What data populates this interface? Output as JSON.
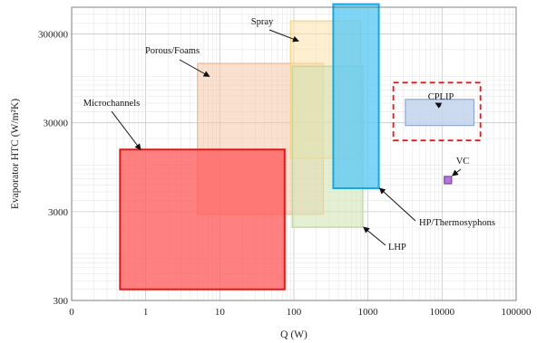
{
  "chart_data": {
    "type": "area",
    "xlabel": "Q (W)",
    "ylabel": "Evaporator HTC (W/m²K)",
    "x_scale": "log",
    "y_scale": "log",
    "xlim": [
      0.1,
      100000
    ],
    "ylim": [
      300,
      600000
    ],
    "x_ticks": [
      {
        "value": 0.1,
        "label": "0"
      },
      {
        "value": 1,
        "label": "1"
      },
      {
        "value": 10,
        "label": "10"
      },
      {
        "value": 100,
        "label": "100"
      },
      {
        "value": 1000,
        "label": "1000"
      },
      {
        "value": 10000,
        "label": "10000"
      },
      {
        "value": 100000,
        "label": "100000"
      }
    ],
    "y_ticks": [
      {
        "value": 300,
        "label": "300"
      },
      {
        "value": 3000,
        "label": "3000"
      },
      {
        "value": 30000,
        "label": "30000"
      },
      {
        "value": 300000,
        "label": "300000"
      }
    ],
    "grid": true,
    "regions": [
      {
        "name": "Porous/Foams",
        "q_range": [
          5,
          250
        ],
        "htc_range": [
          2800,
          140000
        ],
        "fill": "#f5c6a6",
        "stroke": "#f0b890",
        "opacity": 0.55
      },
      {
        "name": "Spray",
        "q_range": [
          90,
          800
        ],
        "htc_range": [
          12000,
          420000
        ],
        "fill": "#fbe2a8",
        "stroke": "#f7d27a",
        "opacity": 0.55
      },
      {
        "name": "LHP",
        "q_range": [
          95,
          850
        ],
        "htc_range": [
          2000,
          130000
        ],
        "fill": "#d4e4b8",
        "stroke": "#bcd59a",
        "opacity": 0.6
      },
      {
        "name": "Microchannels",
        "q_range": [
          0.45,
          75
        ],
        "htc_range": [
          400,
          15000
        ],
        "fill": "#ff5c5c",
        "stroke": "#e01818",
        "opacity": 0.78
      },
      {
        "name": "HP/Thermosyphons",
        "q_range": [
          340,
          1400
        ],
        "htc_range": [
          5500,
          650000
        ],
        "fill": "#5fcbf2",
        "stroke": "#1aa6e0",
        "opacity": 0.8
      },
      {
        "name": "CPLIP",
        "q_range": [
          3200,
          27000
        ],
        "htc_range": [
          28000,
          55000
        ],
        "fill": "#c3d3ec",
        "stroke": "#8fa8d0",
        "opacity": 0.85
      }
    ],
    "points": [
      {
        "name": "VC",
        "q": 12000,
        "htc": 6800,
        "fill": "#b07ad6",
        "stroke": "#7b3fb0"
      }
    ],
    "highlight_box": {
      "target": "CPLIP",
      "q_range": [
        2200,
        33000
      ],
      "htc_range": [
        19000,
        85000
      ],
      "color": "#e01818",
      "dash": "6,4"
    },
    "annotations": [
      {
        "label": "Spray",
        "target": "Spray"
      },
      {
        "label": "Porous/Foams",
        "target": "Porous/Foams"
      },
      {
        "label": "Microchannels",
        "target": "Microchannels"
      },
      {
        "label": "CPLIP",
        "target": "CPLIP"
      },
      {
        "label": "VC",
        "target": "VC"
      },
      {
        "label": "HP/Thermosyphons",
        "target": "HP/Thermosyphons"
      },
      {
        "label": "LHP",
        "target": "LHP"
      }
    ]
  }
}
